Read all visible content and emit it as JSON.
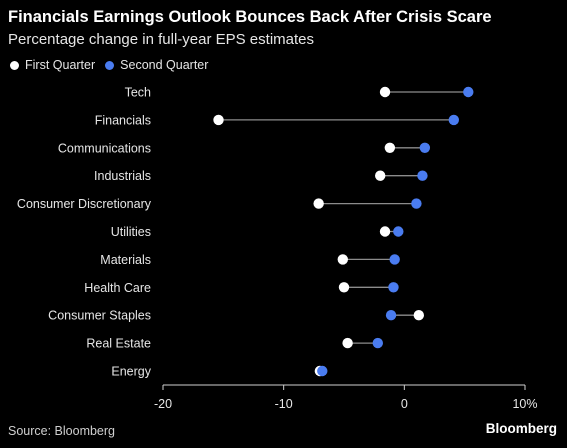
{
  "title": "Financials Earnings Outlook Bounces Back After Crisis Scare",
  "subtitle": "Percentage change in full-year EPS estimates",
  "source": "Source: Bloomberg",
  "brand": "Bloomberg",
  "colors": {
    "background": "#000000",
    "first": "#ffffff",
    "second": "#4a7cf0",
    "connector": "#8c8c8c",
    "text": "#e6e6e6"
  },
  "chart_data": {
    "type": "dot",
    "title": "Financials Earnings Outlook Bounces Back After Crisis Scare",
    "subtitle": "Percentage change in full-year EPS estimates",
    "legend_position": "top-left",
    "grid": false,
    "xlim": [
      -20,
      10
    ],
    "x_ticks": [
      "-20",
      "-10",
      "0",
      "10%"
    ],
    "categories": [
      "Tech",
      "Financials",
      "Communications",
      "Industrials",
      "Consumer Discretionary",
      "Utilities",
      "Materials",
      "Health Care",
      "Consumer Staples",
      "Real Estate",
      "Energy"
    ],
    "series": [
      {
        "name": "First Quarter",
        "color": "#ffffff",
        "values": [
          -1.6,
          -15.4,
          -1.2,
          -2.0,
          -7.1,
          -1.6,
          -5.1,
          -5.0,
          1.2,
          -4.7,
          -7.0
        ]
      },
      {
        "name": "Second Quarter",
        "color": "#4a7cf0",
        "values": [
          5.3,
          4.1,
          1.7,
          1.5,
          1.0,
          -0.5,
          -0.8,
          -0.9,
          -1.1,
          -2.2,
          -6.8
        ]
      }
    ]
  }
}
